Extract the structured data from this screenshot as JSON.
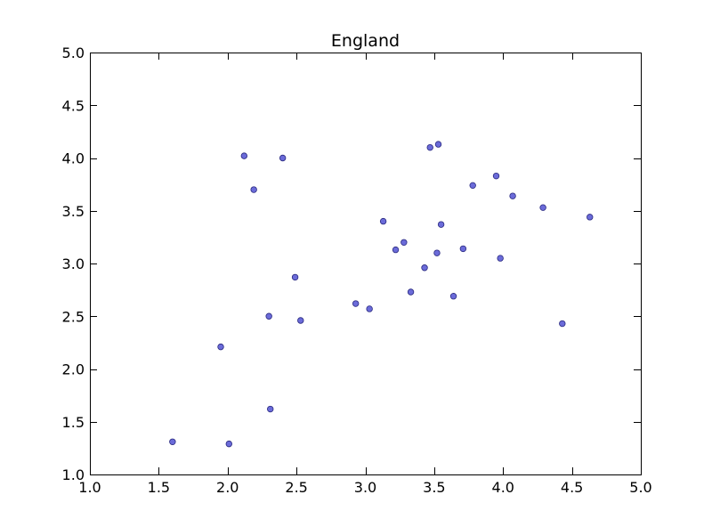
{
  "chart_data": {
    "type": "scatter",
    "title": "England",
    "xlabel": "",
    "ylabel": "",
    "xlim": [
      1.0,
      5.0
    ],
    "ylim": [
      1.0,
      5.0
    ],
    "xticks": [
      1.0,
      1.5,
      2.0,
      2.5,
      3.0,
      3.5,
      4.0,
      4.5,
      5.0
    ],
    "yticks": [
      1.0,
      1.5,
      2.0,
      2.5,
      3.0,
      3.5,
      4.0,
      4.5,
      5.0
    ],
    "xtick_labels": [
      "1.0",
      "1.5",
      "2.0",
      "2.5",
      "3.0",
      "3.5",
      "4.0",
      "4.5",
      "5.0"
    ],
    "ytick_labels": [
      "1.0",
      "1.5",
      "2.0",
      "2.5",
      "3.0",
      "3.5",
      "4.0",
      "4.5",
      "5.0"
    ],
    "grid": false,
    "legend": false,
    "marker_color": "#6b6bd9",
    "marker_edge_color": "#2a2a80",
    "points": [
      {
        "x": 1.6,
        "y": 1.31
      },
      {
        "x": 1.95,
        "y": 2.21
      },
      {
        "x": 2.01,
        "y": 1.29
      },
      {
        "x": 2.12,
        "y": 4.02
      },
      {
        "x": 2.19,
        "y": 3.7
      },
      {
        "x": 2.3,
        "y": 2.5
      },
      {
        "x": 2.31,
        "y": 1.62
      },
      {
        "x": 2.4,
        "y": 4.0
      },
      {
        "x": 2.49,
        "y": 2.87
      },
      {
        "x": 2.53,
        "y": 2.46
      },
      {
        "x": 2.93,
        "y": 2.62
      },
      {
        "x": 3.03,
        "y": 2.57
      },
      {
        "x": 3.13,
        "y": 3.4
      },
      {
        "x": 3.22,
        "y": 3.13
      },
      {
        "x": 3.28,
        "y": 3.2
      },
      {
        "x": 3.33,
        "y": 2.73
      },
      {
        "x": 3.43,
        "y": 2.96
      },
      {
        "x": 3.47,
        "y": 4.1
      },
      {
        "x": 3.52,
        "y": 3.1
      },
      {
        "x": 3.53,
        "y": 4.13
      },
      {
        "x": 3.55,
        "y": 3.37
      },
      {
        "x": 3.64,
        "y": 2.69
      },
      {
        "x": 3.71,
        "y": 3.14
      },
      {
        "x": 3.78,
        "y": 3.74
      },
      {
        "x": 3.95,
        "y": 3.83
      },
      {
        "x": 3.98,
        "y": 3.05
      },
      {
        "x": 4.07,
        "y": 3.64
      },
      {
        "x": 4.29,
        "y": 3.53
      },
      {
        "x": 4.43,
        "y": 2.43
      },
      {
        "x": 4.63,
        "y": 3.44
      }
    ]
  }
}
